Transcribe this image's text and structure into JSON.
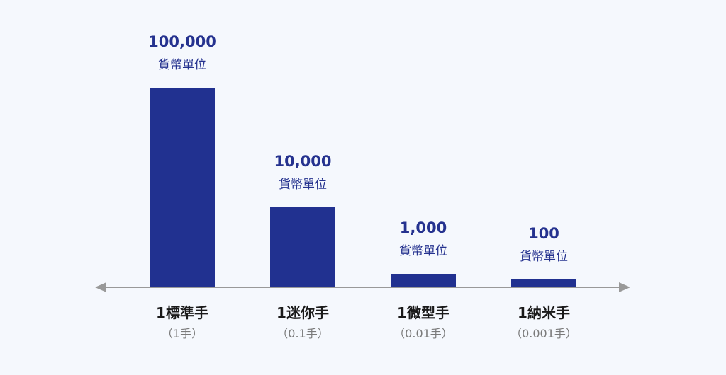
{
  "chart_data": {
    "type": "bar",
    "categories": [
      "1標準手",
      "1迷你手",
      "1微型手",
      "1納米手"
    ],
    "category_sublabels": [
      "（1手）",
      "（0.1手）",
      "（0.01手）",
      "（0.001手）"
    ],
    "values": [
      100000,
      10000,
      1000,
      100
    ],
    "value_labels": [
      "100,000",
      "10,000",
      "1,000",
      "100"
    ],
    "unit_label": "貨幣單位",
    "title": "",
    "xlabel": "",
    "ylabel": "",
    "y_axis_shown": false,
    "x_axis_style": "double-arrow",
    "grid": false,
    "legend": "none",
    "colors": {
      "bar": "#213190",
      "value_text": "#25328f",
      "axis": "#999999",
      "background": "#f5f8fd"
    }
  }
}
